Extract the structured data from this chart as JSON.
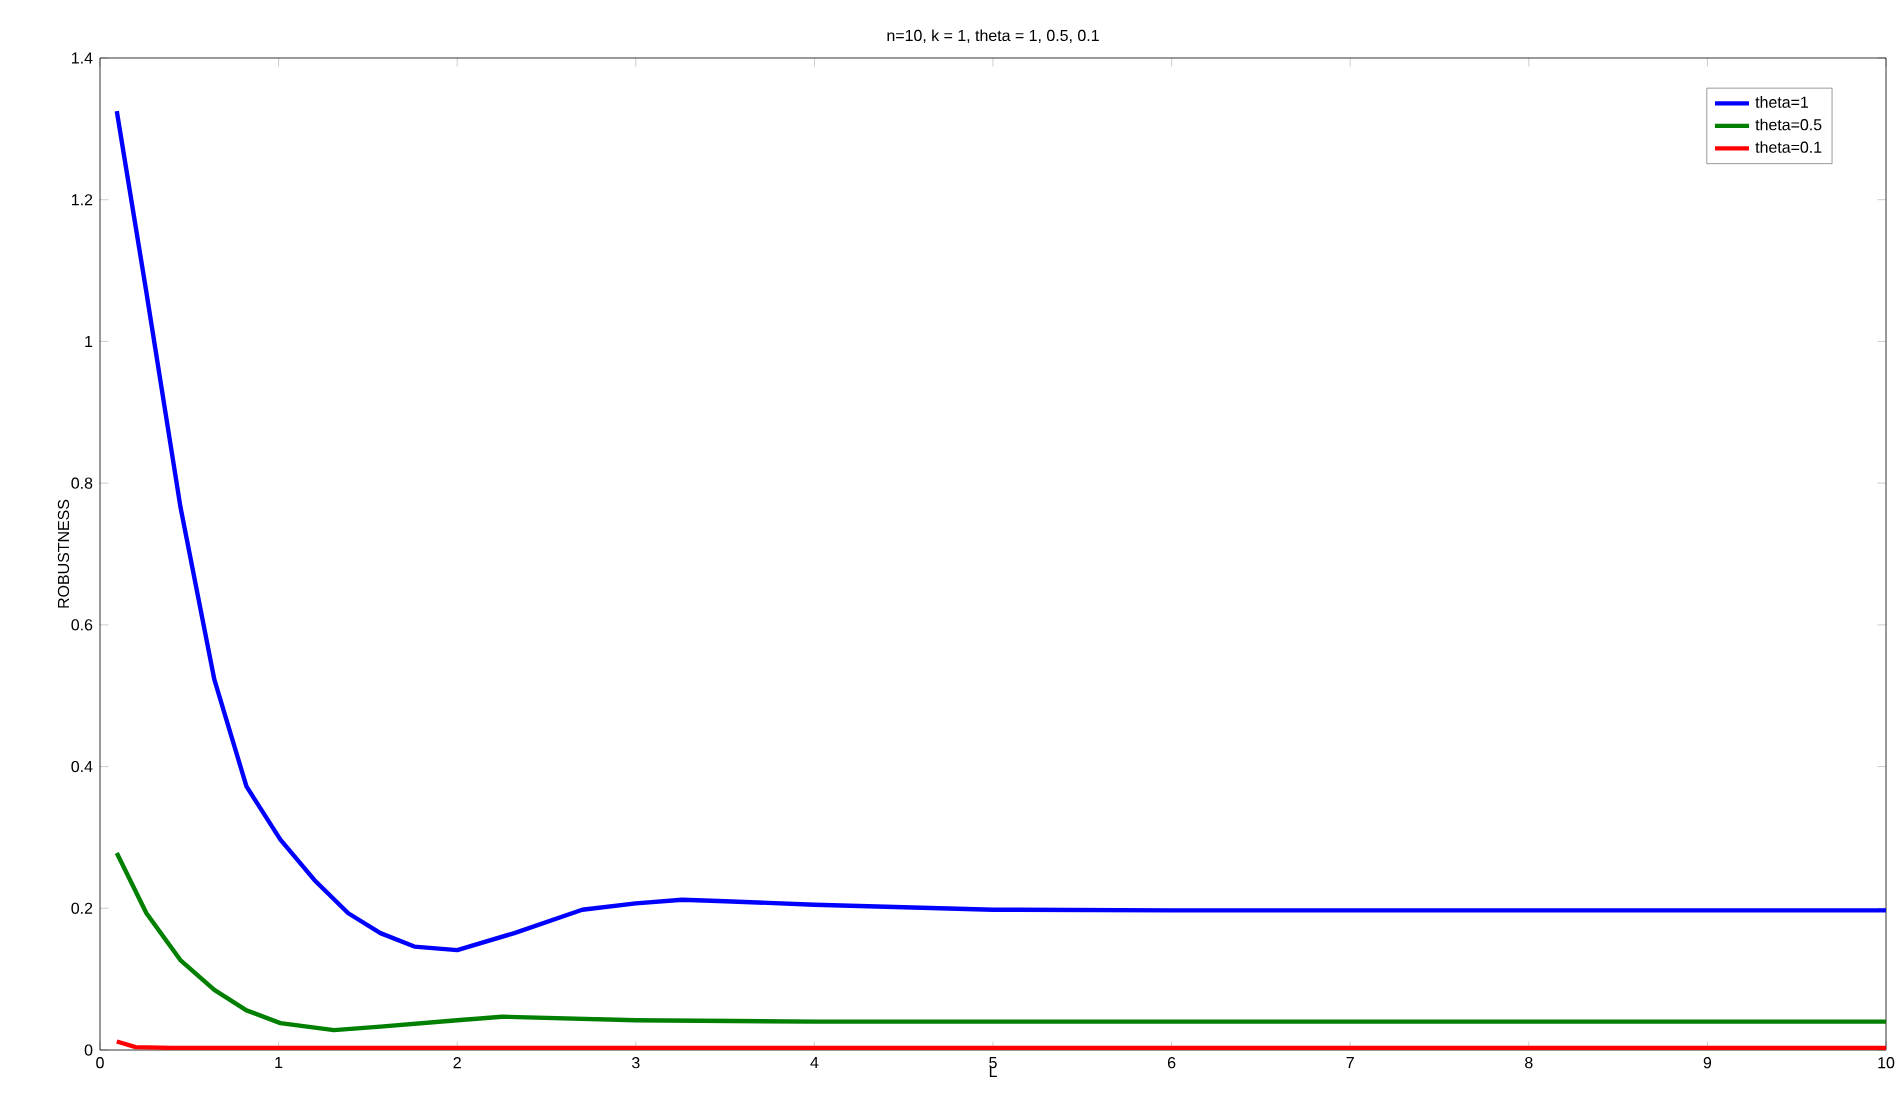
{
  "chart_data": {
    "type": "line",
    "title": "n=10, k = 1, theta = 1, 0.5, 0.1",
    "xlabel": "L",
    "ylabel": "ROBUSTNESS",
    "xlim": [
      0,
      10
    ],
    "ylim": [
      0,
      1.4
    ],
    "xticks": [
      0,
      1,
      2,
      3,
      4,
      5,
      6,
      7,
      8,
      9,
      10
    ],
    "yticks": [
      0,
      0.2,
      0.4,
      0.6,
      0.8,
      1,
      1.2,
      1.4
    ],
    "legend": "top right",
    "marker": "none",
    "line_style": "solid",
    "grid": false,
    "series": [
      {
        "name": "theta=1",
        "color": "#0000ff",
        "x": [
          0.094,
          0.26,
          0.45,
          0.64,
          0.82,
          1.01,
          1.2,
          1.39,
          1.57,
          1.76,
          2.0,
          2.32,
          2.7,
          3.0,
          3.26,
          3.5,
          4,
          5,
          6,
          8,
          10
        ],
        "values": [
          1.325,
          1.069,
          0.767,
          0.523,
          0.372,
          0.297,
          0.24,
          0.193,
          0.165,
          0.146,
          0.141,
          0.165,
          0.198,
          0.207,
          0.212,
          0.21,
          0.205,
          0.198,
          0.197,
          0.197,
          0.197
        ]
      },
      {
        "name": "theta=0.5",
        "color": "#007f00",
        "x": [
          0.094,
          0.26,
          0.45,
          0.64,
          0.82,
          1.01,
          1.31,
          1.57,
          2.0,
          2.25,
          3.0,
          4,
          6,
          8,
          10
        ],
        "values": [
          0.278,
          0.193,
          0.127,
          0.085,
          0.056,
          0.038,
          0.028,
          0.033,
          0.042,
          0.047,
          0.042,
          0.04,
          0.04,
          0.04,
          0.04
        ]
      },
      {
        "name": "theta=0.1",
        "color": "#ff0000",
        "x": [
          0.094,
          0.2,
          0.4,
          1,
          2,
          4,
          6,
          8,
          10
        ],
        "values": [
          0.012,
          0.004,
          0.003,
          0.003,
          0.003,
          0.003,
          0.003,
          0.003,
          0.003
        ]
      }
    ]
  }
}
